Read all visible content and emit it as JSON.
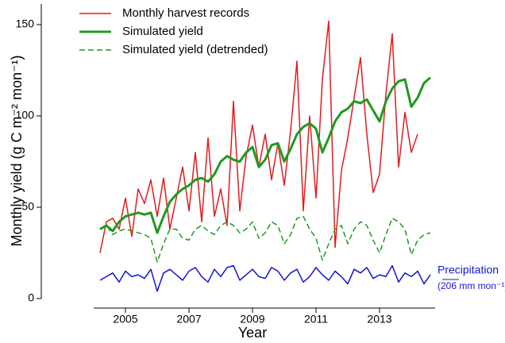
{
  "chart_data": {
    "type": "line",
    "xlabel": "Year",
    "ylabel": "Monthly yield  (g C m⁻² mon⁻¹)",
    "xlim": [
      2004,
      2014.75
    ],
    "xticks": [
      2005,
      2007,
      2009,
      2011,
      2013
    ],
    "ylim": [
      0,
      161
    ],
    "yticks": [
      0,
      50,
      100,
      150
    ],
    "legend": "upper left",
    "x": [
      2004.2,
      2004.4,
      2004.6,
      2004.8,
      2005.0,
      2005.2,
      2005.4,
      2005.6,
      2005.8,
      2006.0,
      2006.2,
      2006.4,
      2006.6,
      2006.8,
      2007.0,
      2007.2,
      2007.4,
      2007.6,
      2007.8,
      2008.0,
      2008.2,
      2008.4,
      2008.6,
      2008.8,
      2009.0,
      2009.2,
      2009.4,
      2009.6,
      2009.8,
      2010.0,
      2010.2,
      2010.4,
      2010.6,
      2010.8,
      2011.0,
      2011.2,
      2011.4,
      2011.6,
      2011.8,
      2012.0,
      2012.2,
      2012.4,
      2012.6,
      2012.8,
      2013.0,
      2013.2,
      2013.4,
      2013.6,
      2013.8,
      2014.0,
      2014.2,
      2014.4,
      2014.6
    ],
    "series": [
      {
        "name": "Monthly harvest records",
        "color": "#e41a1c",
        "line_width": 1.5,
        "dashed": false,
        "values": [
          25,
          42,
          44,
          38,
          55,
          34,
          60,
          52,
          65,
          45,
          66,
          38,
          55,
          72,
          48,
          80,
          42,
          88,
          45,
          60,
          40,
          108,
          48,
          78,
          95,
          72,
          90,
          65,
          85,
          62,
          92,
          130,
          48,
          100,
          55,
          120,
          152,
          28,
          70,
          88,
          110,
          132,
          90,
          58,
          68,
          112,
          145,
          72,
          102,
          80,
          90,
          null,
          null
        ]
      },
      {
        "name": "Simulated yield",
        "color": "#1f9a1f",
        "line_width": 3,
        "dashed": false,
        "values": [
          38,
          40,
          37,
          42,
          45,
          46,
          47,
          46,
          47,
          36,
          45,
          53,
          57,
          60,
          62,
          65,
          66,
          64,
          68,
          75,
          78,
          76,
          75,
          80,
          83,
          72,
          76,
          84,
          85,
          75,
          82,
          90,
          94,
          96,
          93,
          80,
          88,
          97,
          102,
          104,
          108,
          107,
          109,
          103,
          97,
          108,
          115,
          119,
          120,
          105,
          110,
          118,
          121
        ]
      },
      {
        "name": "Simulated yield (detrended)",
        "color": "#1f9a1f",
        "line_width": 1.5,
        "dashed": true,
        "values": [
          38,
          40,
          35,
          37,
          38,
          37,
          36,
          35,
          33,
          20,
          30,
          38,
          38,
          33,
          32,
          38,
          40,
          37,
          35,
          40,
          42,
          40,
          36,
          38,
          42,
          33,
          36,
          42,
          40,
          30,
          35,
          44,
          45,
          38,
          33,
          21,
          30,
          38,
          40,
          30,
          38,
          42,
          40,
          32,
          25,
          35,
          44,
          42,
          38,
          24,
          32,
          35,
          36
        ]
      },
      {
        "name": "Precipitation",
        "color": "#1515d0",
        "line_width": 1.5,
        "dashed": false,
        "direct_label": true,
        "unit_label": "(206 mm mon⁻¹)",
        "values": [
          10,
          12,
          14,
          9,
          15,
          12,
          13,
          11,
          16,
          4,
          14,
          16,
          13,
          10,
          15,
          17,
          12,
          9,
          16,
          12,
          17,
          18,
          10,
          13,
          16,
          12,
          11,
          17,
          15,
          10,
          14,
          16,
          9,
          12,
          17,
          13,
          10,
          15,
          12,
          8,
          16,
          14,
          17,
          11,
          13,
          12,
          18,
          9,
          14,
          12,
          15,
          8,
          13
        ]
      }
    ]
  }
}
